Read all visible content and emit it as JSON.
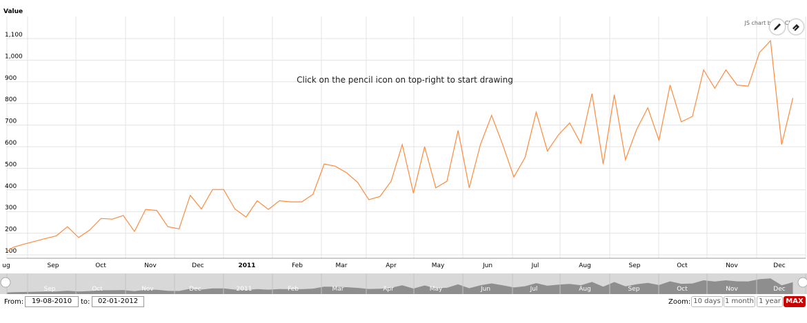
{
  "chart_data": {
    "type": "line",
    "ylabel": "Value",
    "ylim": [
      100,
      1150
    ],
    "yticks": [
      100,
      200,
      300,
      400,
      500,
      600,
      700,
      800,
      900,
      1000,
      1100
    ],
    "ytick_labels": [
      "100",
      "200",
      "300",
      "400",
      "500",
      "600",
      "700",
      "800",
      "900",
      "1,000",
      "1,100"
    ],
    "x_tick_labels": [
      "ug",
      "Sep",
      "Oct",
      "Nov",
      "Dec",
      "2011",
      "Feb",
      "Mar",
      "Apr",
      "May",
      "Jun",
      "Jul",
      "Aug",
      "Sep",
      "Oct",
      "Nov",
      "Dec"
    ],
    "x_tick_bold": [
      false,
      false,
      false,
      false,
      false,
      true,
      false,
      false,
      false,
      false,
      false,
      false,
      false,
      false,
      false,
      false,
      false
    ],
    "x_range": [
      "2010-08-19",
      "2012-01-02"
    ],
    "series": [
      {
        "color": "#ff8a3d",
        "points": [
          [
            "2010-08-19",
            115
          ],
          [
            "2010-08-23",
            135
          ],
          [
            "2010-08-29",
            148
          ],
          [
            "2010-09-12",
            175
          ],
          [
            "2010-09-19",
            188
          ],
          [
            "2010-09-26",
            230
          ],
          [
            "2010-10-03",
            180
          ],
          [
            "2010-10-10",
            215
          ],
          [
            "2010-10-17",
            268
          ],
          [
            "2010-10-24",
            265
          ],
          [
            "2010-10-31",
            282
          ],
          [
            "2010-11-07",
            208
          ],
          [
            "2010-11-14",
            310
          ],
          [
            "2010-11-21",
            305
          ],
          [
            "2010-11-28",
            230
          ],
          [
            "2010-12-05",
            220
          ],
          [
            "2010-12-12",
            375
          ],
          [
            "2010-12-19",
            312
          ],
          [
            "2010-12-26",
            402
          ],
          [
            "2011-01-02",
            402
          ],
          [
            "2011-01-09",
            312
          ],
          [
            "2011-01-16",
            275
          ],
          [
            "2011-01-23",
            350
          ],
          [
            "2011-01-30",
            310
          ],
          [
            "2011-02-06",
            350
          ],
          [
            "2011-02-13",
            345
          ],
          [
            "2011-02-20",
            345
          ],
          [
            "2011-02-27",
            380
          ],
          [
            "2011-03-06",
            520
          ],
          [
            "2011-03-13",
            510
          ],
          [
            "2011-03-20",
            480
          ],
          [
            "2011-03-27",
            435
          ],
          [
            "2011-04-03",
            355
          ],
          [
            "2011-04-10",
            370
          ],
          [
            "2011-04-17",
            440
          ],
          [
            "2011-04-24",
            610
          ],
          [
            "2011-05-01",
            385
          ],
          [
            "2011-05-08",
            600
          ],
          [
            "2011-05-15",
            410
          ],
          [
            "2011-05-22",
            440
          ],
          [
            "2011-05-29",
            675
          ],
          [
            "2011-06-05",
            410
          ],
          [
            "2011-06-12",
            610
          ],
          [
            "2011-06-19",
            745
          ],
          [
            "2011-06-26",
            610
          ],
          [
            "2011-07-03",
            460
          ],
          [
            "2011-07-10",
            550
          ],
          [
            "2011-07-17",
            760
          ],
          [
            "2011-07-24",
            580
          ],
          [
            "2011-07-31",
            655
          ],
          [
            "2011-08-07",
            710
          ],
          [
            "2011-08-14",
            615
          ],
          [
            "2011-08-21",
            845
          ],
          [
            "2011-08-28",
            520
          ],
          [
            "2011-09-04",
            840
          ],
          [
            "2011-09-11",
            540
          ],
          [
            "2011-09-18",
            680
          ],
          [
            "2011-09-25",
            780
          ],
          [
            "2011-10-02",
            630
          ],
          [
            "2011-10-09",
            885
          ],
          [
            "2011-10-16",
            715
          ],
          [
            "2011-10-23",
            740
          ],
          [
            "2011-10-30",
            955
          ],
          [
            "2011-11-06",
            870
          ],
          [
            "2011-11-13",
            955
          ],
          [
            "2011-11-20",
            885
          ],
          [
            "2011-11-27",
            880
          ],
          [
            "2011-12-04",
            1035
          ],
          [
            "2011-12-11",
            1090
          ],
          [
            "2011-12-18",
            610
          ],
          [
            "2011-12-25",
            825
          ]
        ]
      }
    ],
    "grid": true,
    "annotation": "Click on the pencil icon on top-right to start drawing",
    "credit": "JS chart by amCharts"
  },
  "scrollbar": {
    "labels": [
      "Sep",
      "Oct",
      "Nov",
      "Dec",
      "2011",
      "Feb",
      "Mar",
      "Apr",
      "May",
      "Jun",
      "Jul",
      "Aug",
      "Sep",
      "Oct",
      "Nov",
      "Dec"
    ]
  },
  "period_selector": {
    "from_label": "From:",
    "from_value": "19-08-2010",
    "to_label": "to:",
    "to_value": "02-01-2012",
    "zoom_label": "Zoom:",
    "buttons": [
      "10 days",
      "1 month",
      "1 year",
      "MAX"
    ],
    "active": "MAX",
    "active_color": "#cc0000"
  },
  "tools": {
    "pencil": "pencil-icon",
    "eraser": "eraser-icon"
  }
}
